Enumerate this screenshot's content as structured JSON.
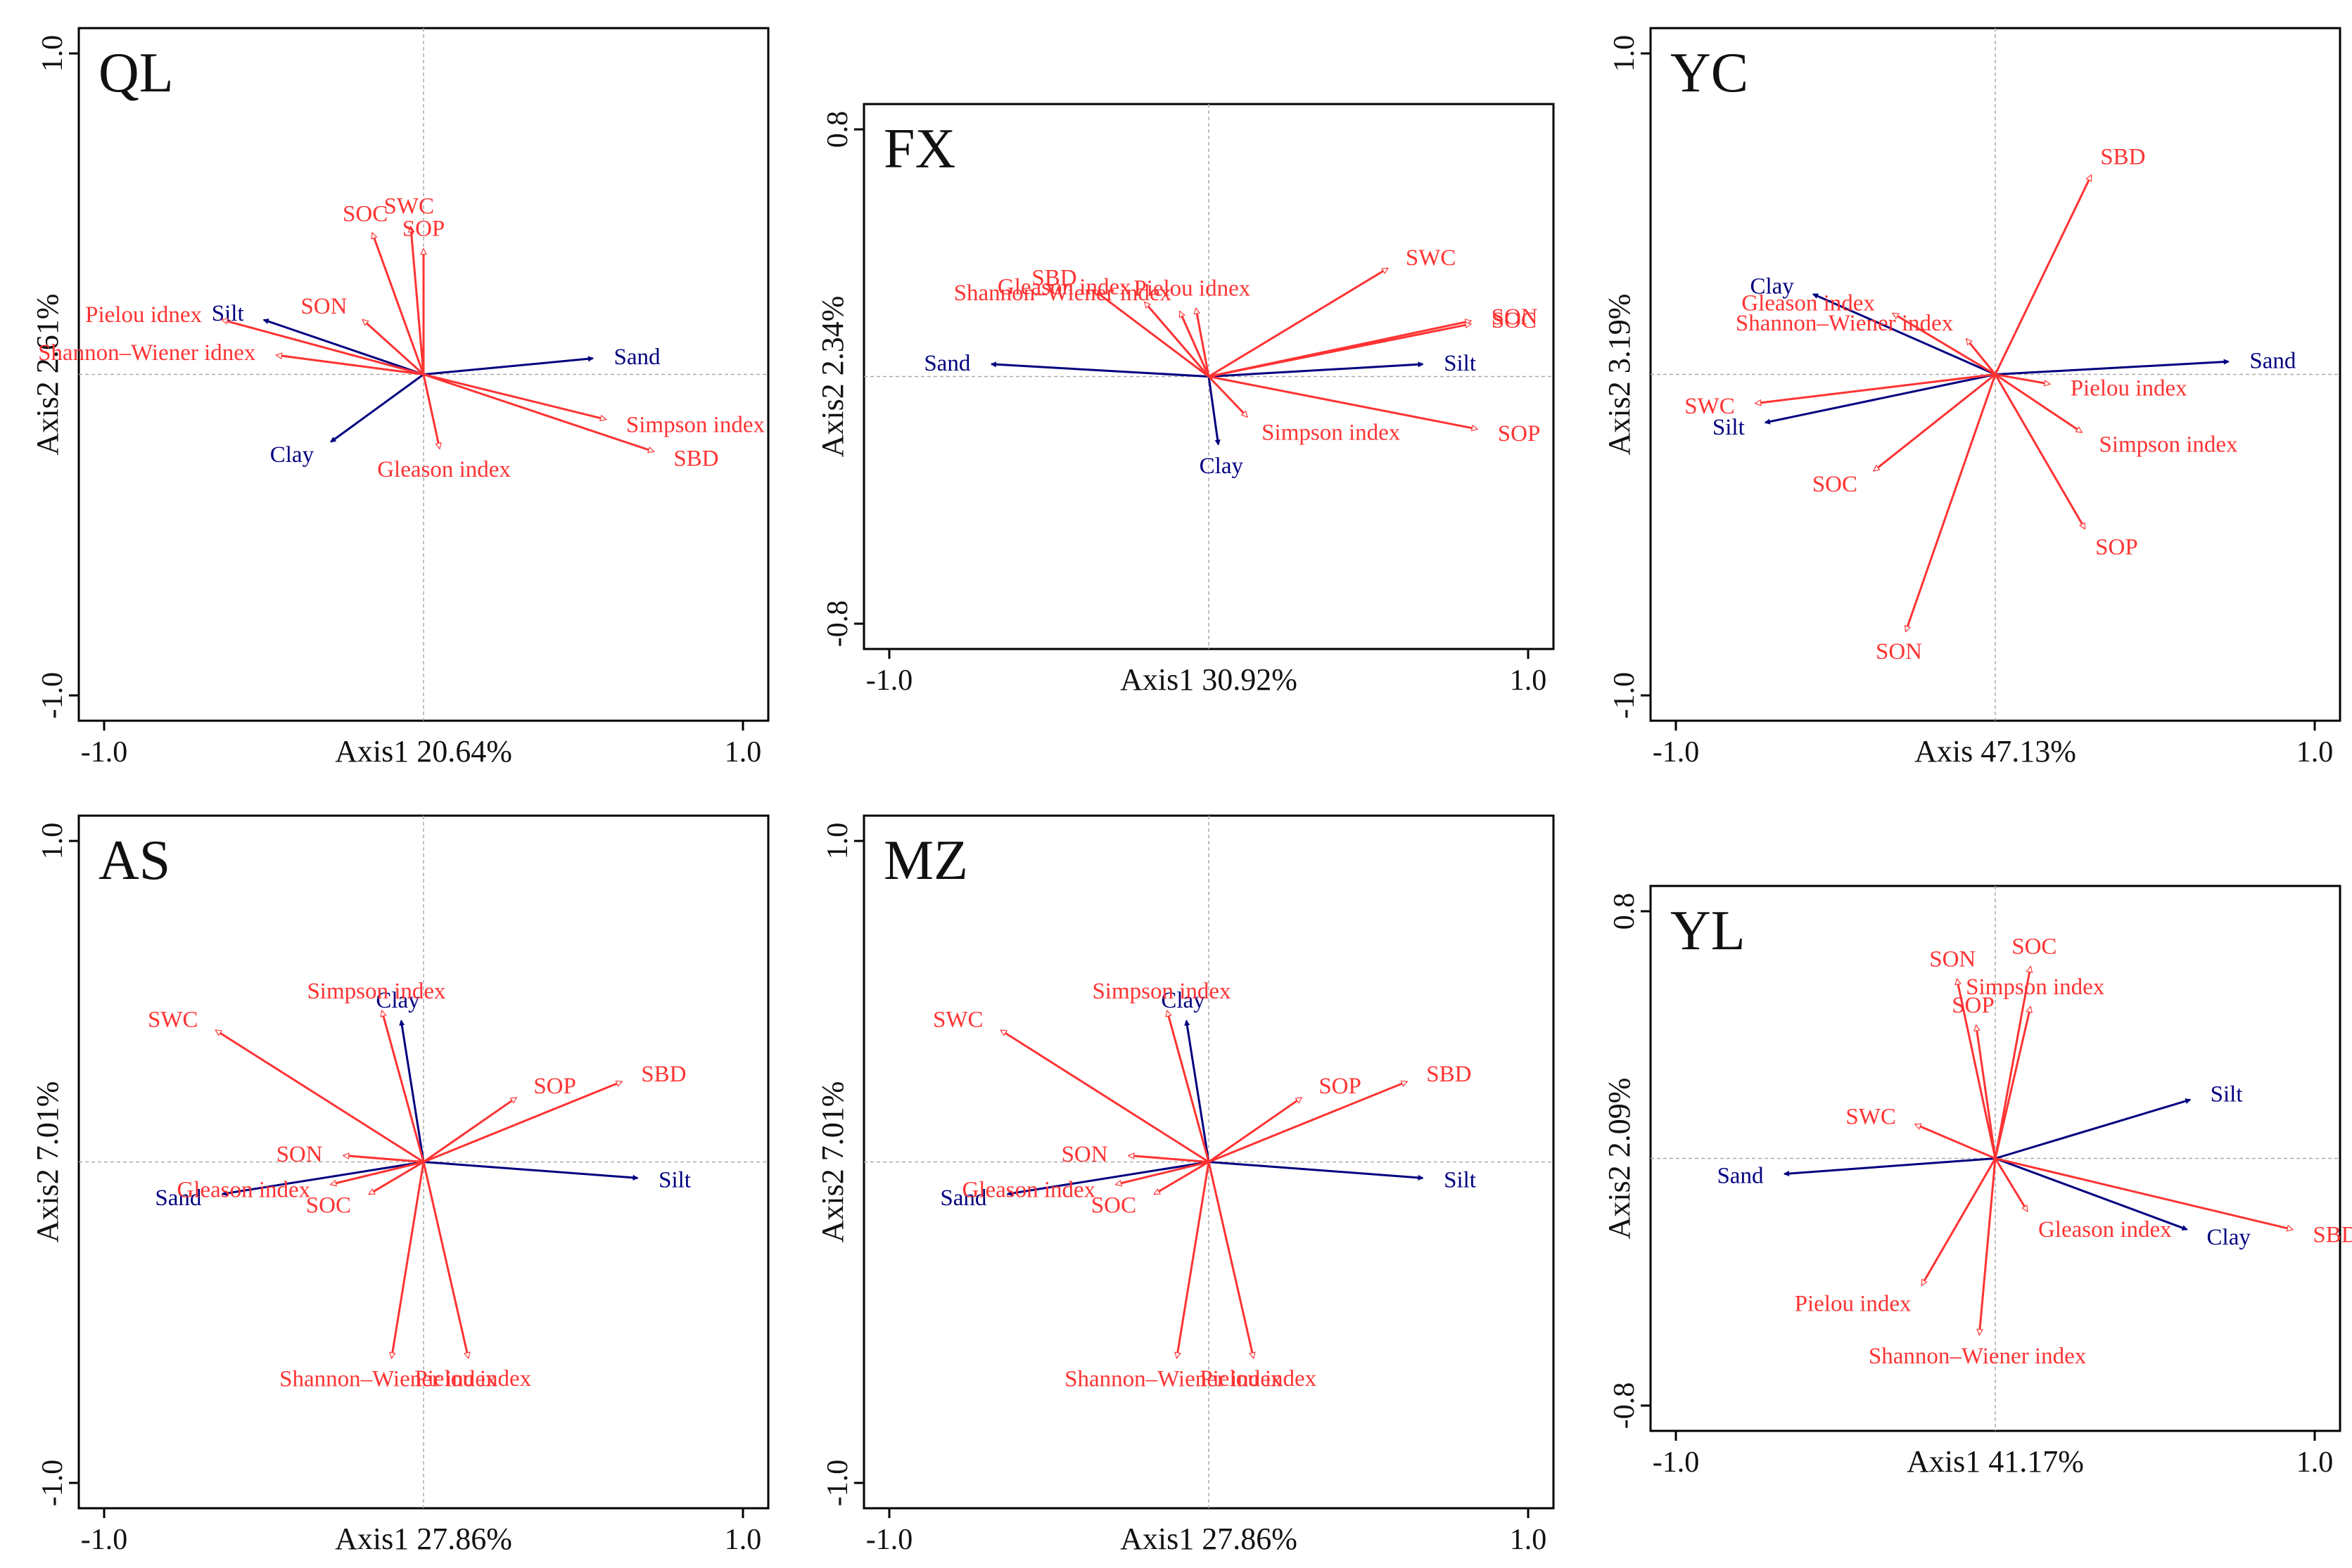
{
  "colors": {
    "response": "#ff3333",
    "soil_texture": "#000080",
    "zero_line": "#aaaaaa"
  },
  "chart_data": [
    {
      "type": "rda-biplot",
      "title": "QL",
      "xlabel": "Axis1 20.64%",
      "ylabel": "Axis2 2.61%",
      "xlim": [
        -1.0,
        1.0
      ],
      "ylim": [
        -1.0,
        1.0
      ],
      "xticks": [
        "-1.0",
        "1.0"
      ],
      "yticks": [
        "1.0",
        "-1.0"
      ],
      "arrows": [
        {
          "name": "Silt",
          "group": "soil_texture",
          "x": -0.5,
          "y": 0.17
        },
        {
          "name": "Sand",
          "group": "soil_texture",
          "x": 0.53,
          "y": 0.05
        },
        {
          "name": "Clay",
          "group": "soil_texture",
          "x": -0.29,
          "y": -0.21
        },
        {
          "name": "SOC",
          "group": "response",
          "x": -0.16,
          "y": 0.44
        },
        {
          "name": "SWC",
          "group": "response",
          "x": -0.04,
          "y": 0.46
        },
        {
          "name": "SOP",
          "group": "response",
          "x": 0.0,
          "y": 0.39
        },
        {
          "name": "SON",
          "group": "response",
          "x": -0.19,
          "y": 0.17
        },
        {
          "name": "Pielou idnex",
          "group": "response",
          "x": -0.63,
          "y": 0.17
        },
        {
          "name": "Shannon–Wiener idnex",
          "group": "response",
          "x": -0.46,
          "y": 0.06
        },
        {
          "name": "Simpson index",
          "group": "response",
          "x": 0.57,
          "y": -0.14
        },
        {
          "name": "SBD",
          "group": "response",
          "x": 0.72,
          "y": -0.24
        },
        {
          "name": "Gleason index",
          "group": "response",
          "x": 0.05,
          "y": -0.23
        }
      ]
    },
    {
      "type": "rda-biplot",
      "title": "FX",
      "xlabel": "Axis1 30.92%",
      "ylabel": "Axis2 2.34%",
      "xlim": [
        -1.0,
        1.0
      ],
      "ylim": [
        -0.8,
        0.8
      ],
      "xticks": [
        "-1.0",
        "1.0"
      ],
      "yticks": [
        "0.8",
        "-0.8"
      ],
      "arrows": [
        {
          "name": "Sand",
          "group": "soil_texture",
          "x": -0.68,
          "y": 0.04
        },
        {
          "name": "Silt",
          "group": "soil_texture",
          "x": 0.67,
          "y": 0.04
        },
        {
          "name": "Clay",
          "group": "soil_texture",
          "x": 0.03,
          "y": -0.22
        },
        {
          "name": "SBD",
          "group": "response",
          "x": -0.36,
          "y": 0.28
        },
        {
          "name": "Gleason index",
          "group": "response",
          "x": -0.2,
          "y": 0.24
        },
        {
          "name": "Shannon–Wiener index",
          "group": "response",
          "x": -0.09,
          "y": 0.21
        },
        {
          "name": "Pielou idnex",
          "group": "response",
          "x": -0.04,
          "y": 0.22
        },
        {
          "name": "SWC",
          "group": "response",
          "x": 0.56,
          "y": 0.35
        },
        {
          "name": "SON",
          "group": "response",
          "x": 0.82,
          "y": 0.18
        },
        {
          "name": "SOC",
          "group": "response",
          "x": 0.82,
          "y": 0.17
        },
        {
          "name": "Simpson index",
          "group": "response",
          "x": 0.12,
          "y": -0.13
        },
        {
          "name": "SOP",
          "group": "response",
          "x": 0.84,
          "y": -0.17
        }
      ]
    },
    {
      "type": "rda-biplot",
      "title": "YC",
      "xlabel": "Axis 47.13%",
      "ylabel": "Axis2 3.19%",
      "xlim": [
        -1.0,
        1.0
      ],
      "ylim": [
        -1.0,
        1.0
      ],
      "xticks": [
        "-1.0",
        "1.0"
      ],
      "yticks": [
        "1.0",
        "-1.0"
      ],
      "arrows": [
        {
          "name": "Clay",
          "group": "soil_texture",
          "x": -0.57,
          "y": 0.25
        },
        {
          "name": "Silt",
          "group": "soil_texture",
          "x": -0.72,
          "y": -0.15
        },
        {
          "name": "Sand",
          "group": "soil_texture",
          "x": 0.73,
          "y": 0.04
        },
        {
          "name": "SBD",
          "group": "response",
          "x": 0.3,
          "y": 0.62
        },
        {
          "name": "Gleason index",
          "group": "response",
          "x": -0.32,
          "y": 0.19
        },
        {
          "name": "Shannon–Wiener index",
          "group": "response",
          "x": -0.09,
          "y": 0.11
        },
        {
          "name": "SWC",
          "group": "response",
          "x": -0.75,
          "y": -0.09
        },
        {
          "name": "SOC",
          "group": "response",
          "x": -0.38,
          "y": -0.3
        },
        {
          "name": "SON",
          "group": "response",
          "x": -0.28,
          "y": -0.8
        },
        {
          "name": "Pielou index",
          "group": "response",
          "x": 0.17,
          "y": -0.03
        },
        {
          "name": "Simpson index",
          "group": "response",
          "x": 0.27,
          "y": -0.18
        },
        {
          "name": "SOP",
          "group": "response",
          "x": 0.28,
          "y": -0.48
        }
      ]
    },
    {
      "type": "rda-biplot",
      "title": "AS",
      "xlabel": "Axis1 27.86%",
      "ylabel": "Axis2 7.01%",
      "xlim": [
        -1.0,
        1.0
      ],
      "ylim": [
        -1.0,
        1.0
      ],
      "xticks": [
        "-1.0",
        "1.0"
      ],
      "yticks": [
        "1.0",
        "-1.0"
      ],
      "arrows": [
        {
          "name": "Clay",
          "group": "soil_texture",
          "x": -0.07,
          "y": 0.44
        },
        {
          "name": "Silt",
          "group": "soil_texture",
          "x": 0.67,
          "y": -0.05
        },
        {
          "name": "Sand",
          "group": "soil_texture",
          "x": -0.63,
          "y": -0.1
        },
        {
          "name": "SWC",
          "group": "response",
          "x": -0.65,
          "y": 0.41
        },
        {
          "name": "Simpson index",
          "group": "response",
          "x": -0.13,
          "y": 0.47
        },
        {
          "name": "SOP",
          "group": "response",
          "x": 0.29,
          "y": 0.2
        },
        {
          "name": "SBD",
          "group": "response",
          "x": 0.62,
          "y": 0.25
        },
        {
          "name": "SON",
          "group": "response",
          "x": -0.25,
          "y": 0.02
        },
        {
          "name": "Gleason index",
          "group": "response",
          "x": -0.29,
          "y": -0.07
        },
        {
          "name": "SOC",
          "group": "response",
          "x": -0.17,
          "y": -0.1
        },
        {
          "name": "Shannon–Wiener index",
          "group": "response",
          "x": -0.1,
          "y": -0.61
        },
        {
          "name": "Pielou index",
          "group": "response",
          "x": 0.14,
          "y": -0.61
        }
      ]
    },
    {
      "type": "rda-biplot",
      "title": "MZ",
      "xlabel": "Axis1 27.86%",
      "ylabel": "Axis2 7.01%",
      "xlim": [
        -1.0,
        1.0
      ],
      "ylim": [
        -1.0,
        1.0
      ],
      "xticks": [
        "-1.0",
        "1.0"
      ],
      "yticks": [
        "1.0",
        "-1.0"
      ],
      "arrows": [
        {
          "name": "Clay",
          "group": "soil_texture",
          "x": -0.07,
          "y": 0.44
        },
        {
          "name": "Silt",
          "group": "soil_texture",
          "x": 0.67,
          "y": -0.05
        },
        {
          "name": "Sand",
          "group": "soil_texture",
          "x": -0.63,
          "y": -0.1
        },
        {
          "name": "SWC",
          "group": "response",
          "x": -0.65,
          "y": 0.41
        },
        {
          "name": "Simpson index",
          "group": "response",
          "x": -0.13,
          "y": 0.47
        },
        {
          "name": "SOP",
          "group": "response",
          "x": 0.29,
          "y": 0.2
        },
        {
          "name": "SBD",
          "group": "response",
          "x": 0.62,
          "y": 0.25
        },
        {
          "name": "SON",
          "group": "response",
          "x": -0.25,
          "y": 0.02
        },
        {
          "name": "Gleason index",
          "group": "response",
          "x": -0.29,
          "y": -0.07
        },
        {
          "name": "SOC",
          "group": "response",
          "x": -0.17,
          "y": -0.1
        },
        {
          "name": "Shannon–Wiener index",
          "group": "response",
          "x": -0.1,
          "y": -0.61
        },
        {
          "name": "Pielou index",
          "group": "response",
          "x": 0.14,
          "y": -0.61
        }
      ]
    },
    {
      "type": "rda-biplot",
      "title": "YL",
      "xlabel": "Axis1 41.17%",
      "ylabel": "Axis2 2.09%",
      "xlim": [
        -1.0,
        1.0
      ],
      "ylim": [
        -0.8,
        0.8
      ],
      "xticks": [
        "-1.0",
        "1.0"
      ],
      "yticks": [
        "0.8",
        "-0.8"
      ],
      "arrows": [
        {
          "name": "Silt",
          "group": "soil_texture",
          "x": 0.61,
          "y": 0.19
        },
        {
          "name": "Sand",
          "group": "soil_texture",
          "x": -0.66,
          "y": -0.05
        },
        {
          "name": "Clay",
          "group": "soil_texture",
          "x": 0.6,
          "y": -0.23
        },
        {
          "name": "SON",
          "group": "response",
          "x": -0.12,
          "y": 0.58
        },
        {
          "name": "SOC",
          "group": "response",
          "x": 0.11,
          "y": 0.62
        },
        {
          "name": "SOP",
          "group": "response",
          "x": -0.06,
          "y": 0.43
        },
        {
          "name": "Simpson index",
          "group": "response",
          "x": 0.11,
          "y": 0.49
        },
        {
          "name": "SWC",
          "group": "response",
          "x": -0.25,
          "y": 0.11
        },
        {
          "name": "SBD",
          "group": "response",
          "x": 0.93,
          "y": -0.23
        },
        {
          "name": "Gleason index",
          "group": "response",
          "x": 0.1,
          "y": -0.17
        },
        {
          "name": "Pielou index",
          "group": "response",
          "x": -0.23,
          "y": -0.41
        },
        {
          "name": "Shannon–Wiener index",
          "group": "response",
          "x": -0.05,
          "y": -0.57
        }
      ]
    }
  ]
}
